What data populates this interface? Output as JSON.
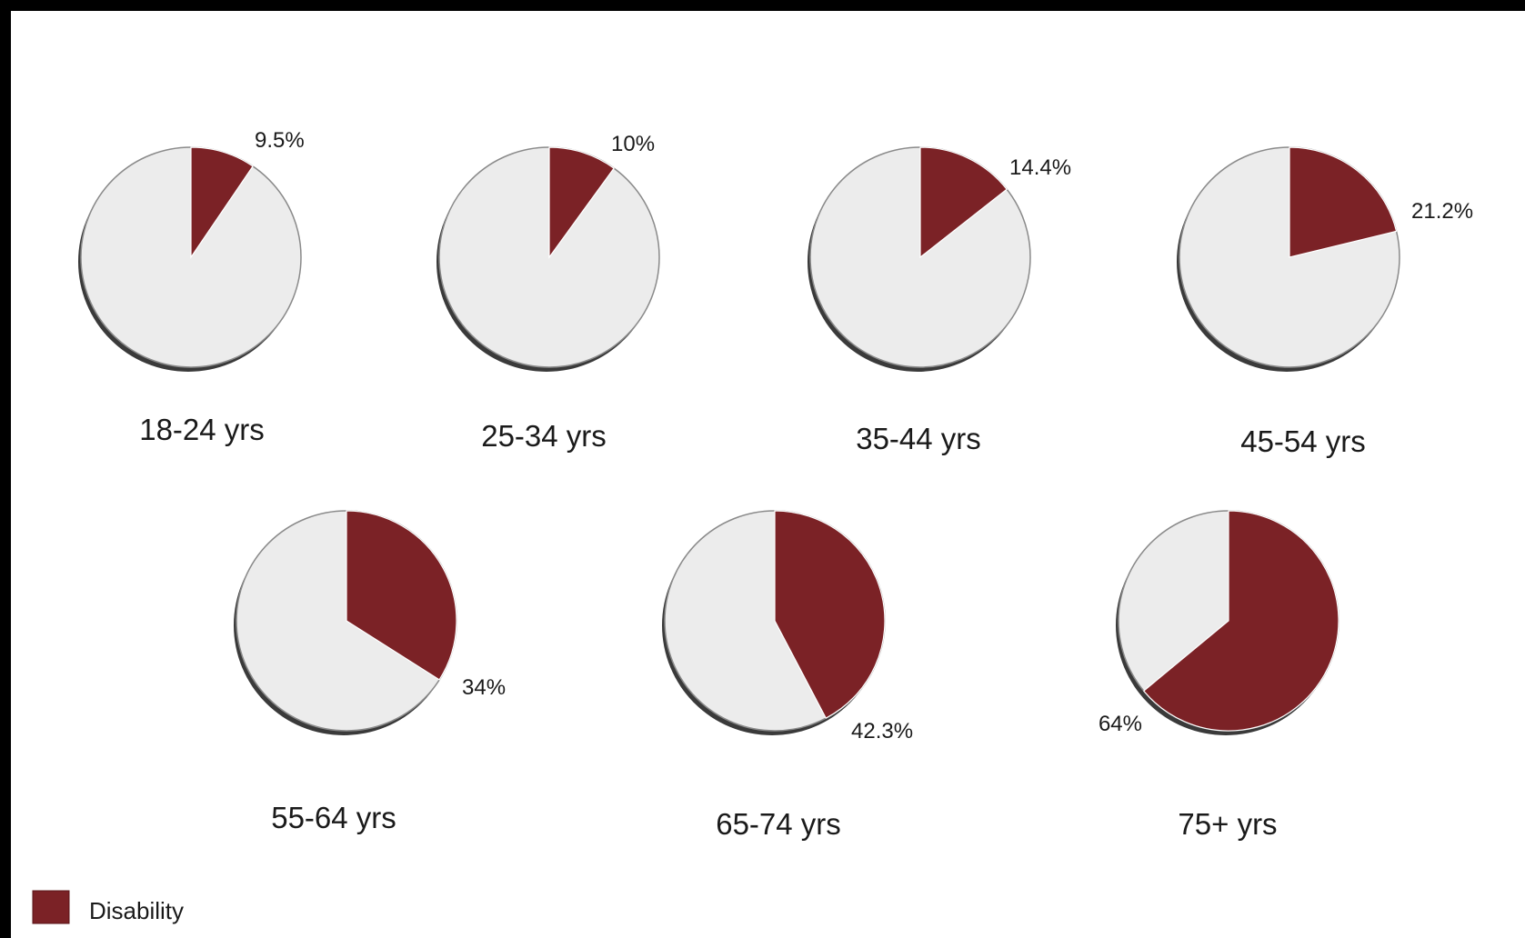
{
  "chart_data": {
    "type": "pie",
    "colors": {
      "disability": "#7b2226",
      "remainder": "#ececec",
      "outline": "#8a8a8a",
      "shadow": "#3a3a3a"
    },
    "legend": {
      "label": "Disability",
      "placement": "bottom-left"
    },
    "pies": [
      {
        "category": "18-24 yrs",
        "value": 9.5,
        "label": "9.5%"
      },
      {
        "category": "25-34 yrs",
        "value": 10,
        "label": "10%"
      },
      {
        "category": "35-44 yrs",
        "value": 14.4,
        "label": "14.4%"
      },
      {
        "category": "45-54 yrs",
        "value": 21.2,
        "label": "21.2%"
      },
      {
        "category": "55-64 yrs",
        "value": 34,
        "label": "34%"
      },
      {
        "category": "65-74 yrs",
        "value": 42.3,
        "label": "42.3%"
      },
      {
        "category": "75+ yrs",
        "value": 64,
        "label": "64%"
      }
    ]
  }
}
